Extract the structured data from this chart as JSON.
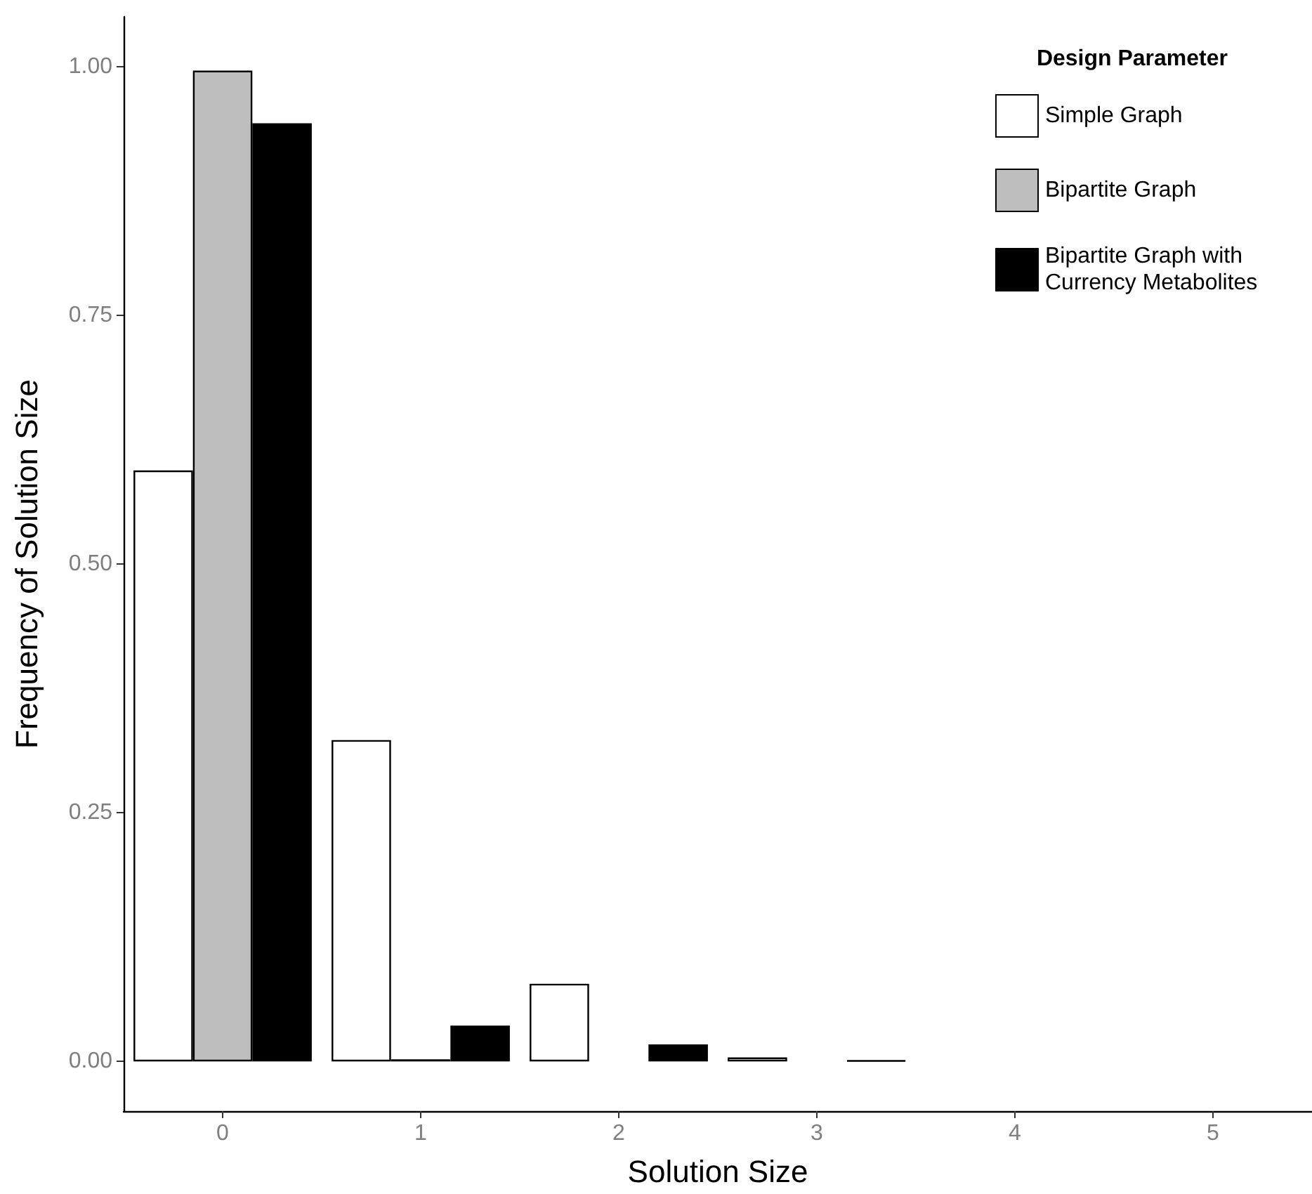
{
  "chart_data": {
    "type": "bar",
    "xlabel": "Solution Size",
    "ylabel": "Frequency of Solution Size",
    "legend_title": "Design Parameter",
    "categories": [
      "0",
      "1",
      "2",
      "3",
      "4",
      "5"
    ],
    "series": [
      {
        "name": "Simple Graph",
        "color": "#ffffff",
        "values": [
          0.594,
          0.323,
          0.078,
          0.004,
          0,
          0
        ]
      },
      {
        "name": "Bipartite Graph",
        "color": "#bebebe",
        "values": [
          0.996,
          0.002,
          0,
          0,
          0,
          0
        ]
      },
      {
        "name": "Bipartite Graph with Currency Metabolites",
        "color": "#000000",
        "values": [
          0.943,
          0.036,
          0.017,
          0.001,
          0,
          0
        ]
      }
    ],
    "ylim": [
      -0.05,
      1.05
    ],
    "yticks": [
      {
        "value": 0,
        "label": "0.00"
      },
      {
        "value": 0.25,
        "label": "0.25"
      },
      {
        "value": 0.5,
        "label": "0.50"
      },
      {
        "value": 0.75,
        "label": "0.75"
      },
      {
        "value": 1,
        "label": "1.00"
      }
    ],
    "grid": false,
    "legend": "top right"
  }
}
